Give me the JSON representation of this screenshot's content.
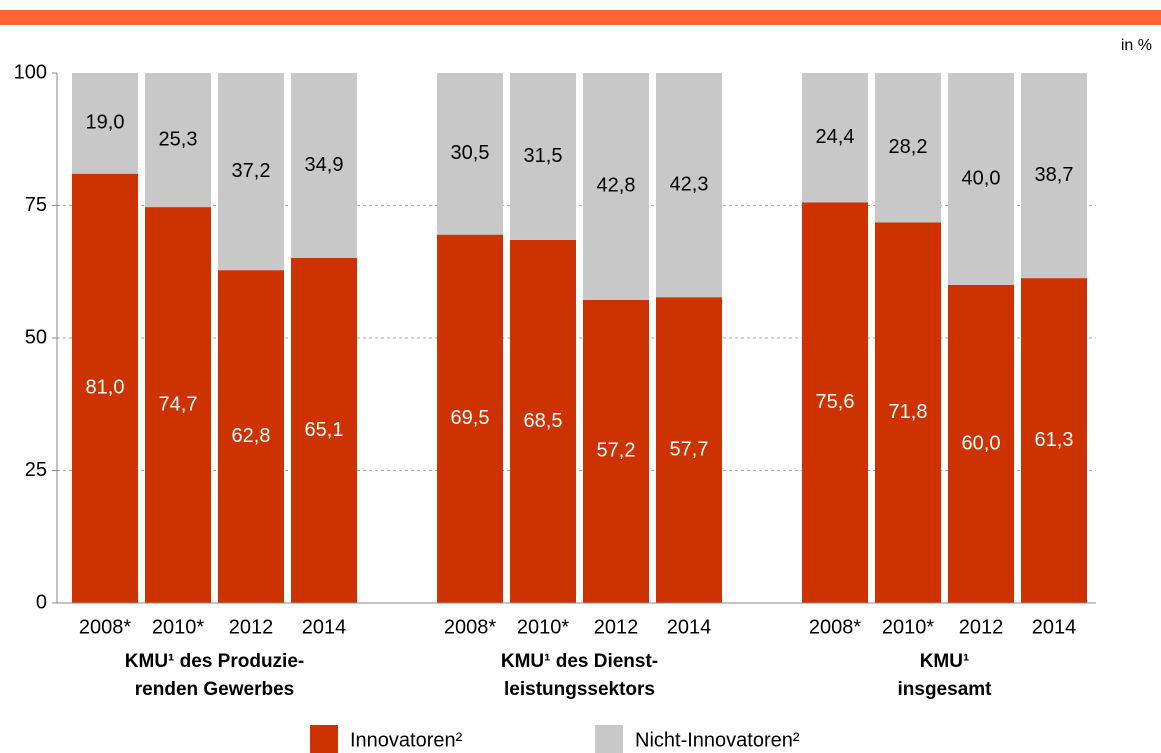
{
  "chart_data": {
    "type": "stacked-bar",
    "unit_label": "in %",
    "categories": [
      "2008*",
      "2010*",
      "2012",
      "2014",
      "2008*",
      "2010*",
      "2012",
      "2014",
      "2008*",
      "2010*",
      "2012",
      "2014"
    ],
    "groups": [
      {
        "label": [
          "KMU¹ des Produzie-",
          "renden Gewerbes"
        ]
      },
      {
        "label": [
          "KMU¹ des Dienst-",
          "leistungssektors"
        ]
      },
      {
        "label": [
          "KMU¹",
          "insgesamt"
        ]
      }
    ],
    "series": [
      {
        "name": "Innovatoren²",
        "color": "#cc3300",
        "label_color": "#ffffff",
        "values": [
          81.0,
          74.7,
          62.8,
          65.1,
          69.5,
          68.5,
          57.2,
          57.7,
          75.6,
          71.8,
          60.0,
          61.3
        ],
        "value_labels": [
          "81,0",
          "74,7",
          "62,8",
          "65,1",
          "69,5",
          "68,5",
          "57,2",
          "57,7",
          "75,6",
          "71,8",
          "60,0",
          "61,3"
        ]
      },
      {
        "name": "Nicht-Innovatoren²",
        "color": "#c8c8c8",
        "label_color": "#000000",
        "values": [
          19.0,
          25.3,
          37.2,
          34.9,
          30.5,
          31.5,
          42.8,
          42.3,
          24.4,
          28.2,
          40.0,
          38.7
        ],
        "value_labels": [
          "19,0",
          "25,3",
          "37,2",
          "34,9",
          "30,5",
          "31,5",
          "42,8",
          "42,3",
          "24,4",
          "28,2",
          "40,0",
          "38,7"
        ]
      }
    ],
    "ylim": [
      0,
      100
    ],
    "yticks": [
      0,
      25,
      50,
      75,
      100
    ],
    "grid": true
  }
}
